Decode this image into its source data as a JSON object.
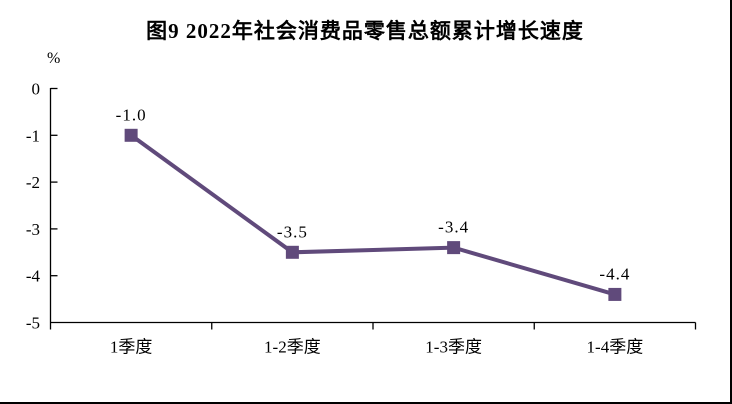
{
  "chart_data": {
    "type": "line",
    "title": "图9 2022年社会消费品零售总额累计增长速度",
    "ylabel": "%",
    "xlabel": "",
    "categories": [
      "1季度",
      "1-2季度",
      "1-3季度",
      "1-4季度"
    ],
    "values": [
      -1.0,
      -3.5,
      -3.4,
      -4.4
    ],
    "point_labels": [
      "-1.0",
      "-3.5",
      "-3.4",
      "-4.4"
    ],
    "y_ticks": [
      0,
      -1,
      -2,
      -3,
      -4,
      -5
    ],
    "y_tick_labels": [
      "0",
      "-1",
      "-2",
      "-3",
      "-4",
      "-5"
    ],
    "ylim": [
      -5,
      0
    ],
    "grid": false,
    "legend": "none",
    "marker": "square",
    "line_color": "#604A7B",
    "axis_color": "#000000",
    "background": "#FFFFFF"
  }
}
